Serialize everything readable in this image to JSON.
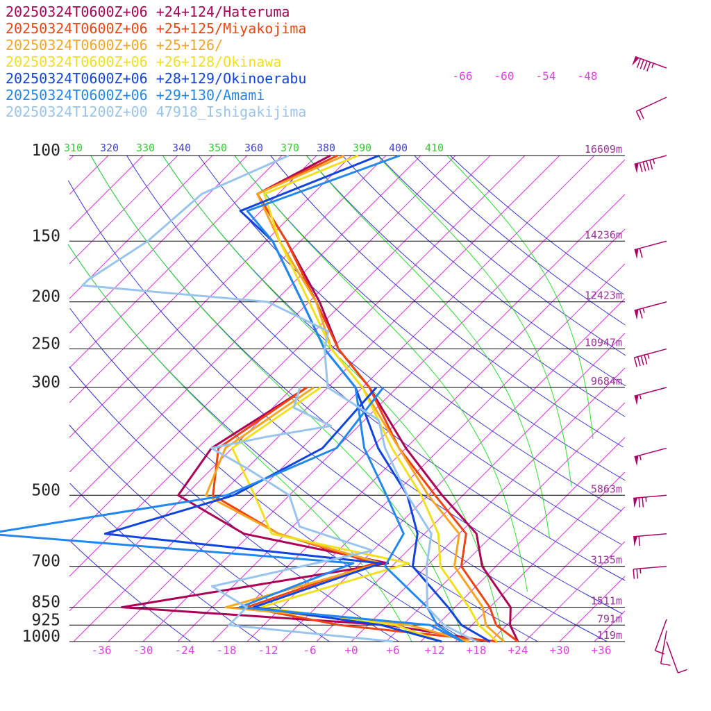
{
  "chart_data": {
    "type": "line",
    "chart_kind": "skew-T log-P",
    "title": "",
    "legend_placement": "top-left",
    "pressure_levels": [
      100,
      150,
      200,
      250,
      300,
      500,
      700,
      850,
      925,
      1000
    ],
    "pressure_labels": [
      "100",
      "150",
      "200",
      "250",
      "300",
      "500",
      "700",
      "850",
      "925",
      "1000"
    ],
    "heights": [
      {
        "p": 100,
        "label": "16609m"
      },
      {
        "p": 150,
        "label": "14236m"
      },
      {
        "p": 200,
        "label": "12423m"
      },
      {
        "p": 250,
        "label": "10947m"
      },
      {
        "p": 300,
        "label": "9684m"
      },
      {
        "p": 500,
        "label": "5863m"
      },
      {
        "p": 700,
        "label": "3135m"
      },
      {
        "p": 850,
        "label": "1511m"
      },
      {
        "p": 925,
        "label": "791m"
      },
      {
        "p": 1000,
        "label": "119m"
      }
    ],
    "temp_ticks": [
      -36,
      -30,
      -24,
      -18,
      -12,
      -6,
      0,
      6,
      12,
      18,
      24,
      30,
      36
    ],
    "temp_tick_labels": [
      "-36",
      "-30",
      "-24",
      "-18",
      "-12",
      "-6",
      "+0",
      "+6",
      "+12",
      "+18",
      "+24",
      "+30",
      "+36"
    ],
    "upper_temp_labels": [
      "-66",
      "-60",
      "-54",
      "-48"
    ],
    "theta_labels": [
      {
        "text": "310",
        "color": "#33cc33"
      },
      {
        "text": "320",
        "color": "#4444cc"
      },
      {
        "text": "330",
        "color": "#33cc33"
      },
      {
        "text": "340",
        "color": "#4444cc"
      },
      {
        "text": "350",
        "color": "#33cc33"
      },
      {
        "text": "360",
        "color": "#4444cc"
      },
      {
        "text": "370",
        "color": "#33cc33"
      },
      {
        "text": "380",
        "color": "#4444cc"
      },
      {
        "text": "390",
        "color": "#33cc33"
      },
      {
        "text": "400",
        "color": "#4444cc"
      },
      {
        "text": "410",
        "color": "#33cc33"
      }
    ],
    "colors": {
      "isotherm": "#dd33dd",
      "dry_adiabat": "#3333cc",
      "moist_adiabat": "#33dd33",
      "isobar": "#000000",
      "barb": "#aa0066"
    },
    "series": [
      {
        "name": "20250324T0600Z+06 +24+124/Hateruma",
        "color": "#aa0055",
        "temperature": [
          [
            100,
            -73
          ],
          [
            120,
            -78
          ],
          [
            150,
            -67
          ],
          [
            200,
            -53.5
          ],
          [
            250,
            -44
          ],
          [
            300,
            -34
          ],
          [
            400,
            -20
          ],
          [
            500,
            -8
          ],
          [
            600,
            2.5
          ],
          [
            700,
            8
          ],
          [
            850,
            18
          ],
          [
            925,
            20.5
          ],
          [
            1000,
            24
          ]
        ],
        "dewpoint": [
          [
            300,
            -43
          ],
          [
            400,
            -48
          ],
          [
            500,
            -46
          ],
          [
            600,
            -31
          ],
          [
            690,
            -6
          ],
          [
            850,
            -38
          ],
          [
            925,
            3
          ],
          [
            1000,
            20
          ]
        ]
      },
      {
        "name": "20250324T0600Z+06 +25+125/Miyakojima",
        "color": "#ee4411",
        "temperature": [
          [
            100,
            -72
          ],
          [
            120,
            -78
          ],
          [
            150,
            -67
          ],
          [
            200,
            -54
          ],
          [
            250,
            -44
          ],
          [
            300,
            -34
          ],
          [
            400,
            -21
          ],
          [
            500,
            -9
          ],
          [
            600,
            1
          ],
          [
            700,
            5
          ],
          [
            850,
            15
          ],
          [
            925,
            18.5
          ],
          [
            1000,
            24
          ]
        ],
        "dewpoint": [
          [
            300,
            -43
          ],
          [
            400,
            -47
          ],
          [
            500,
            -41
          ],
          [
            600,
            -26
          ],
          [
            690,
            -8
          ],
          [
            850,
            -20
          ],
          [
            925,
            -4
          ],
          [
            1000,
            21
          ]
        ]
      },
      {
        "name": "20250324T0600Z+06 +25+126/",
        "color": "#f5a623",
        "temperature": [
          [
            100,
            -71
          ],
          [
            120,
            -78
          ],
          [
            150,
            -68
          ],
          [
            200,
            -54
          ],
          [
            250,
            -45
          ],
          [
            300,
            -35
          ],
          [
            400,
            -21
          ],
          [
            500,
            -10
          ],
          [
            600,
            0
          ],
          [
            700,
            4
          ],
          [
            850,
            14
          ],
          [
            925,
            17
          ],
          [
            1000,
            22
          ]
        ],
        "dewpoint": [
          [
            300,
            -42
          ],
          [
            400,
            -46
          ],
          [
            500,
            -42
          ],
          [
            600,
            -26
          ],
          [
            690,
            -7
          ],
          [
            850,
            -23
          ],
          [
            925,
            6
          ],
          [
            1000,
            17
          ]
        ]
      },
      {
        "name": "20250324T0600Z+06 +26+128/Okinawa",
        "color": "#f0e020",
        "temperature": [
          [
            100,
            -69
          ],
          [
            120,
            -77
          ],
          [
            150,
            -68
          ],
          [
            200,
            -55
          ],
          [
            250,
            -45
          ],
          [
            300,
            -35
          ],
          [
            400,
            -22
          ],
          [
            500,
            -11
          ],
          [
            600,
            -3
          ],
          [
            700,
            2
          ],
          [
            850,
            12
          ],
          [
            925,
            16
          ],
          [
            1000,
            21
          ]
        ],
        "dewpoint": [
          [
            300,
            -41
          ],
          [
            400,
            -45
          ],
          [
            500,
            -35
          ],
          [
            600,
            -27
          ],
          [
            690,
            -3
          ],
          [
            850,
            -18
          ],
          [
            925,
            4
          ],
          [
            1000,
            13
          ]
        ]
      },
      {
        "name": "20250324T0600Z+06 +28+129/Okinoerabu",
        "color": "#1144dd",
        "temperature": [
          [
            100,
            -66
          ],
          [
            130,
            -78
          ],
          [
            150,
            -69
          ],
          [
            200,
            -56
          ],
          [
            250,
            -46
          ],
          [
            300,
            -36
          ],
          [
            400,
            -24
          ],
          [
            500,
            -13
          ],
          [
            600,
            -6
          ],
          [
            700,
            -2
          ],
          [
            850,
            9
          ],
          [
            925,
            13.5
          ],
          [
            1000,
            20
          ]
        ],
        "dewpoint": [
          [
            300,
            -33
          ],
          [
            400,
            -32
          ],
          [
            500,
            -38
          ],
          [
            600,
            -51
          ],
          [
            690,
            -7
          ],
          [
            850,
            -19
          ],
          [
            925,
            2
          ],
          [
            1000,
            13
          ]
        ]
      },
      {
        "name": "20250324T0600Z+06 +29+130/Amami",
        "color": "#2288ee",
        "temperature": [
          [
            100,
            -63
          ],
          [
            130,
            -77
          ],
          [
            150,
            -69
          ],
          [
            200,
            -56
          ],
          [
            250,
            -46
          ],
          [
            300,
            -36
          ],
          [
            400,
            -26
          ],
          [
            500,
            -16
          ],
          [
            600,
            -8
          ],
          [
            700,
            -6
          ],
          [
            850,
            6
          ],
          [
            925,
            10
          ],
          [
            1000,
            16
          ]
        ],
        "dewpoint": [
          [
            300,
            -32
          ],
          [
            400,
            -30
          ],
          [
            500,
            -39
          ],
          [
            600,
            -68
          ],
          [
            690,
            -11
          ],
          [
            850,
            -21
          ],
          [
            925,
            9
          ],
          [
            1000,
            16
          ]
        ]
      },
      {
        "name": "20250324T1200Z+00 47918_Ishigakijima",
        "color": "#99c4ee",
        "temperature": [
          [
            100,
            -79
          ],
          [
            120,
            -86
          ],
          [
            150,
            -87
          ],
          [
            180,
            -90
          ],
          [
            185,
            -90
          ],
          [
            200,
            -61
          ],
          [
            230,
            -48
          ],
          [
            250,
            -46
          ],
          [
            300,
            -40
          ],
          [
            350,
            -28
          ],
          [
            400,
            -23
          ],
          [
            500,
            -13
          ],
          [
            600,
            -4
          ],
          [
            700,
            0
          ],
          [
            850,
            6
          ],
          [
            925,
            11
          ],
          [
            1000,
            18
          ]
        ],
        "dewpoint": [
          [
            300,
            -44
          ],
          [
            330,
            -42
          ],
          [
            360,
            -34
          ],
          [
            380,
            -42
          ],
          [
            400,
            -48
          ],
          [
            440,
            -40
          ],
          [
            500,
            -30
          ],
          [
            580,
            -24
          ],
          [
            650,
            -10
          ],
          [
            700,
            -18
          ],
          [
            770,
            -28
          ],
          [
            850,
            -20
          ],
          [
            925,
            -20
          ],
          [
            1000,
            6
          ]
        ]
      }
    ],
    "wind_barbs": [
      {
        "p": 40,
        "dir": 290,
        "speed": 95
      },
      {
        "p": 60,
        "dir": 245,
        "speed": 20
      },
      {
        "p": 100,
        "dir": 255,
        "speed": 95
      },
      {
        "p": 150,
        "dir": 255,
        "speed": 60
      },
      {
        "p": 200,
        "dir": 255,
        "speed": 65
      },
      {
        "p": 250,
        "dir": 255,
        "speed": 45
      },
      {
        "p": 300,
        "dir": 255,
        "speed": 55
      },
      {
        "p": 400,
        "dir": 255,
        "speed": 55
      },
      {
        "p": 500,
        "dir": 265,
        "speed": 75
      },
      {
        "p": 600,
        "dir": 265,
        "speed": 60
      },
      {
        "p": 700,
        "dir": 265,
        "speed": 25
      },
      {
        "p": 900,
        "dir": 200,
        "speed": 10
      },
      {
        "p": 950,
        "dir": 190,
        "speed": 10
      },
      {
        "p": 1000,
        "dir": 160,
        "speed": 10
      }
    ]
  }
}
